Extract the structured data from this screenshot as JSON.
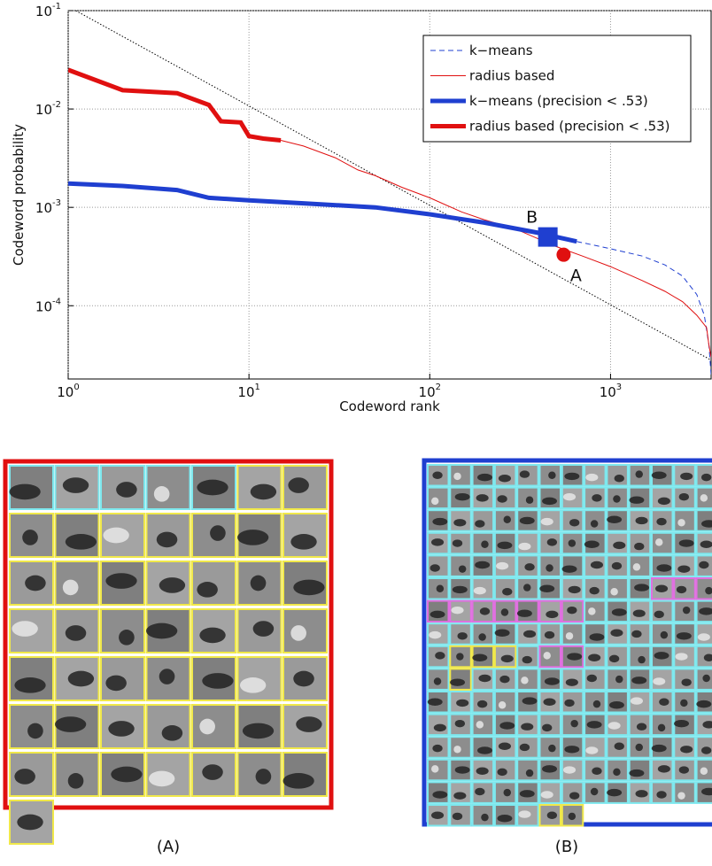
{
  "chart_data": {
    "type": "line",
    "xlabel": "Codeword rank",
    "ylabel": "Codeword probability",
    "log_x": true,
    "log_y": true,
    "grid": true,
    "legend": "upper right",
    "xlim": [
      1,
      3600
    ],
    "ylim": [
      1.8e-05,
      0.1
    ],
    "xticks": [
      {
        "value": 1,
        "label": "10",
        "sup": "0"
      },
      {
        "value": 10,
        "label": "10",
        "sup": "1"
      },
      {
        "value": 100,
        "label": "10",
        "sup": "2"
      },
      {
        "value": 1000,
        "label": "10",
        "sup": "3"
      }
    ],
    "yticks": [
      {
        "value": 0.0001,
        "label": "10",
        "sup": "-4"
      },
      {
        "value": 0.001,
        "label": "10",
        "sup": "-3"
      },
      {
        "value": 0.01,
        "label": "10",
        "sup": "-2"
      },
      {
        "value": 0.1,
        "label": "10",
        "sup": "-1"
      }
    ],
    "reference_line": {
      "color": "#000000",
      "x": [
        1.1,
        3600
      ],
      "values": [
        0.1,
        2.8e-05
      ]
    },
    "series": [
      {
        "name": "k−means",
        "color": "#1f3fd0",
        "line_style": "dashed",
        "linewidth": 1,
        "x": [
          650,
          1000,
          1500,
          2000,
          2500,
          3000,
          3300,
          3500,
          3600
        ],
        "values": [
          0.00045,
          0.00038,
          0.00032,
          0.00026,
          0.0002,
          0.00013,
          8e-05,
          4e-05,
          2e-05
        ]
      },
      {
        "name": "radius based",
        "color": "#e01010",
        "line_style": "solid",
        "linewidth": 1,
        "x": [
          15,
          20,
          30,
          40,
          50,
          70,
          100,
          150,
          200,
          300,
          500,
          700,
          1000,
          1500,
          2000,
          2500,
          3000,
          3400,
          3500,
          3600
        ],
        "values": [
          0.0048,
          0.0042,
          0.0032,
          0.0024,
          0.0021,
          0.0016,
          0.00125,
          0.0009,
          0.00075,
          0.0006,
          0.0004,
          0.00032,
          0.00025,
          0.00018,
          0.00014,
          0.00011,
          8e-05,
          6e-05,
          4e-05,
          3e-05
        ]
      },
      {
        "name": "k−means (precision < .53)",
        "color": "#1f3fd0",
        "line_style": "solid",
        "linewidth": 5,
        "x": [
          1,
          2,
          4,
          6,
          10,
          20,
          50,
          100,
          200,
          400,
          650
        ],
        "values": [
          0.00175,
          0.00165,
          0.0015,
          0.00125,
          0.00118,
          0.0011,
          0.001,
          0.00085,
          0.0007,
          0.00055,
          0.00045
        ]
      },
      {
        "name": "radius based (precision < .53)",
        "color": "#e01010",
        "line_style": "solid",
        "linewidth": 5,
        "x": [
          1,
          2,
          4,
          6,
          7,
          9,
          10,
          12,
          15
        ],
        "values": [
          0.025,
          0.0155,
          0.0145,
          0.011,
          0.0075,
          0.0073,
          0.0053,
          0.005,
          0.0048
        ]
      }
    ],
    "markers": [
      {
        "label": "B",
        "shape": "square",
        "color": "#1f3fd0",
        "x": 450,
        "y": 0.0005
      },
      {
        "label": "A",
        "shape": "circle",
        "color": "#e01010",
        "x": 550,
        "y": 0.00033
      }
    ]
  },
  "panels": [
    {
      "label": "(A)",
      "border": "#e01010"
    },
    {
      "label": "(B)",
      "border": "#1f3fd0"
    }
  ]
}
